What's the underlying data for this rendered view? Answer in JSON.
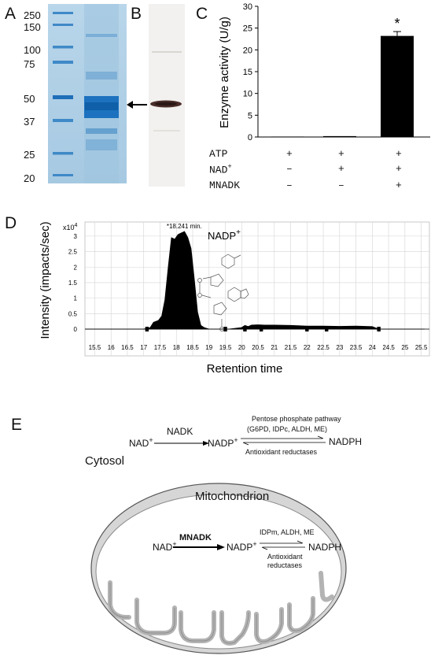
{
  "panels": {
    "a": "A",
    "b": "B",
    "c": "C",
    "d": "D",
    "e": "E"
  },
  "gel": {
    "markers": [
      "250",
      "150",
      "100",
      "75",
      "50",
      "37",
      "25",
      "20"
    ]
  },
  "bar_chart": {
    "ylabel": "Enzyme activity (U/g)",
    "yticks": [
      "0",
      "5",
      "10",
      "15",
      "20",
      "25",
      "30"
    ],
    "significance": "*",
    "rows": [
      {
        "label": "ATP",
        "sup": "",
        "marks": [
          "+",
          "+",
          "+"
        ]
      },
      {
        "label": "NAD",
        "sup": "+",
        "marks": [
          "–",
          "+",
          "+"
        ]
      },
      {
        "label": "MNADK",
        "sup": "",
        "marks": [
          "–",
          "–",
          "+"
        ]
      }
    ]
  },
  "chromatogram": {
    "ylabel": "Intensity (impacts/sec)",
    "xlabel": "Retention time",
    "scale_label": "x10",
    "scale_exp": "4",
    "peak_label": "*18.241 min.",
    "molecule_label": "NADP",
    "molecule_sup": "+",
    "yticks": [
      "0",
      "0.5",
      "1",
      "1.5",
      "2",
      "2.5",
      "3"
    ],
    "xticks": [
      "15.5",
      "16",
      "16.5",
      "17",
      "17.5",
      "18",
      "18.5",
      "19",
      "19.5",
      "20",
      "20.5",
      "21",
      "21.5",
      "22",
      "22.5",
      "23",
      "23.5",
      "24",
      "24.5",
      "25",
      "25.5"
    ]
  },
  "pathway": {
    "cytosol": "Cytosol",
    "mito": "Mitochondrion",
    "nad": "NAD",
    "nadp": "NADP",
    "plus": "+",
    "nadph": "NADPH",
    "nadk": "NADK",
    "pentose_line1": "Pentose phosphate pathway",
    "pentose_line2": "(G6PD, IDPc, ALDH, ME)",
    "antiox": "Antioxidant reductases",
    "mnadk": "MNADK",
    "mito_enzymes": "IDPm, ALDH, ME",
    "antiox_line1": "Antioxidant",
    "antiox_line2": "reductases"
  },
  "chart_data": [
    {
      "type": "bar",
      "categories": [
        "ATP",
        "ATP + NAD+",
        "ATP + NAD+ + MNADK"
      ],
      "values": [
        0.1,
        0.2,
        23.2
      ],
      "errors": [
        0,
        0,
        1.0
      ],
      "ylabel": "Enzyme activity (U/g)",
      "ylim": [
        0,
        30
      ],
      "annotation": "*"
    },
    {
      "type": "area",
      "xlabel": "Retention time",
      "ylabel": "Intensity (impacts/sec)",
      "xlim": [
        15.5,
        25.5
      ],
      "ylim": [
        0,
        3.2
      ],
      "peak": {
        "x": 18.241,
        "label": "*18.241 min."
      },
      "x": [
        15.2,
        17.0,
        17.2,
        17.3,
        17.45,
        17.55,
        17.65,
        17.75,
        17.85,
        17.95,
        18.05,
        18.15,
        18.25,
        18.35,
        18.45,
        18.55,
        18.65,
        18.75,
        18.85,
        19.0,
        19.6,
        20.0,
        20.1,
        20.2,
        20.3,
        20.5,
        20.7,
        21.0,
        21.5,
        22.0,
        22.5,
        23.0,
        23.5,
        24.0,
        24.2,
        25.6
      ],
      "y": [
        0,
        0,
        0.05,
        0.22,
        0.28,
        0.42,
        0.95,
        2.0,
        2.95,
        2.9,
        3.05,
        3.1,
        3.15,
        2.95,
        2.6,
        1.6,
        0.55,
        0.12,
        0.05,
        0,
        0,
        0.05,
        0.12,
        0.08,
        0.13,
        0.14,
        0.13,
        0.13,
        0.12,
        0.1,
        0.1,
        0.09,
        0.1,
        0.08,
        0,
        0
      ]
    }
  ]
}
